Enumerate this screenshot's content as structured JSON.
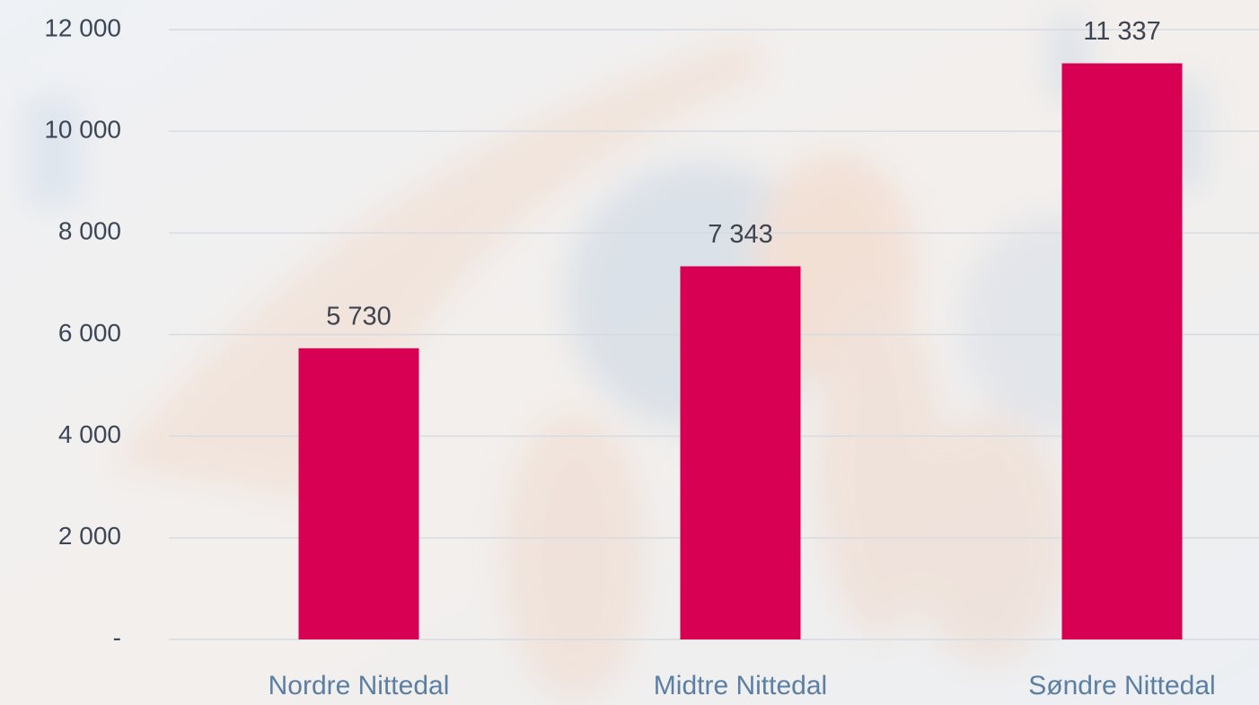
{
  "chart_data": {
    "type": "bar",
    "categories": [
      "Nordre Nittedal",
      "Midtre Nittedal",
      "Søndre Nittedal"
    ],
    "values": [
      5730,
      7343,
      11337
    ],
    "value_labels": [
      "5 730",
      "7 343",
      "11 337"
    ],
    "color": "#d70052",
    "ylim": [
      0,
      12000
    ],
    "yticks": [
      {
        "value": 0,
        "label": "-"
      },
      {
        "value": 2000,
        "label": "2 000"
      },
      {
        "value": 4000,
        "label": "4 000"
      },
      {
        "value": 6000,
        "label": "6 000"
      },
      {
        "value": 8000,
        "label": "8 000"
      },
      {
        "value": 10000,
        "label": "10 000"
      },
      {
        "value": 12000,
        "label": "12 000"
      }
    ],
    "grid": true
  }
}
